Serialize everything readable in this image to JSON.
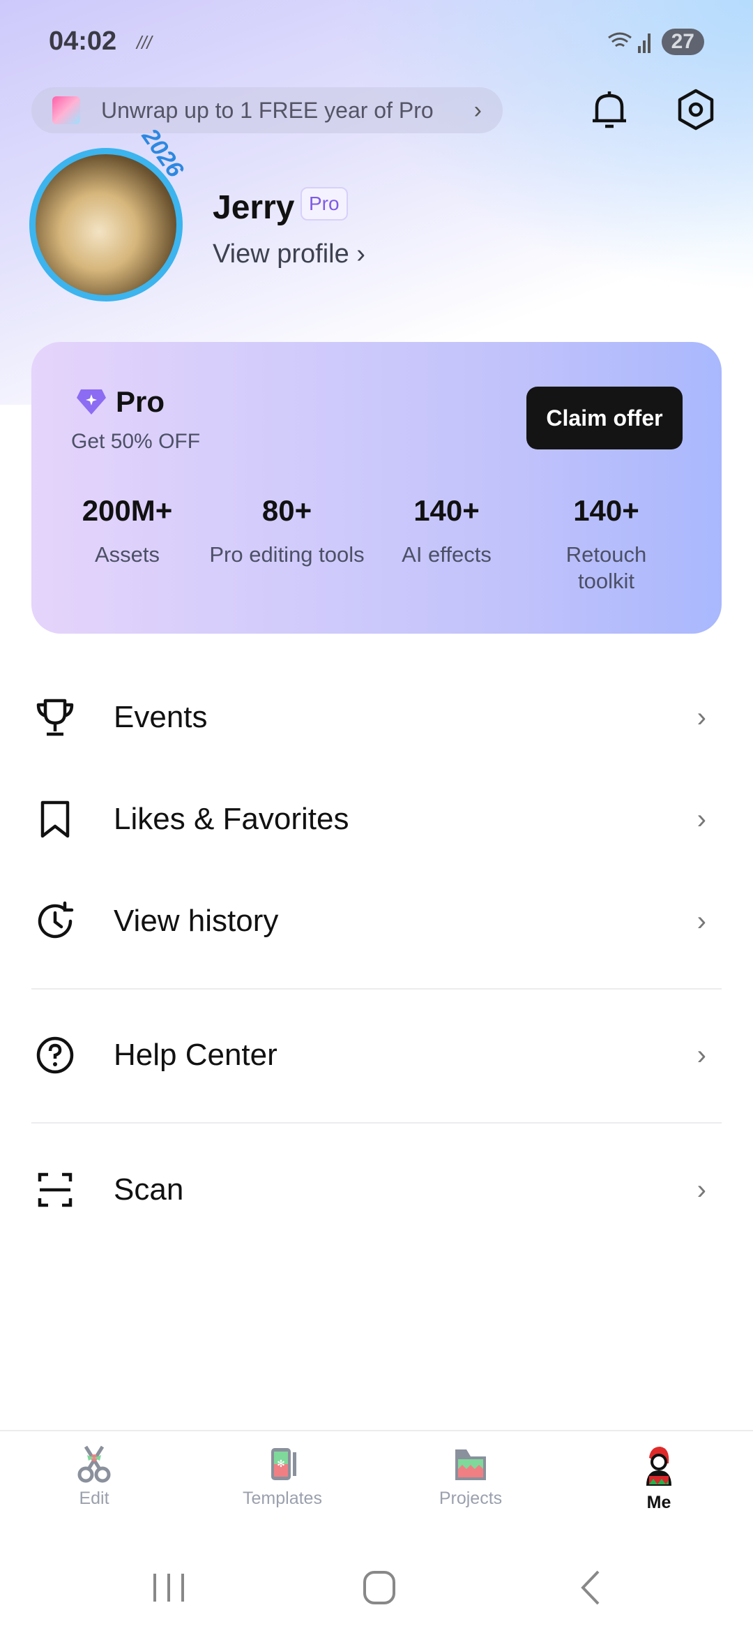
{
  "status_bar": {
    "time": "04:02",
    "misc": "///",
    "battery": "27"
  },
  "promo": {
    "text": "Unwrap up to 1 FREE year of Pro",
    "icon": "gift-icon"
  },
  "header": {
    "bell_icon": "bell-icon",
    "settings_icon": "settings-icon"
  },
  "profile": {
    "name": "Jerry",
    "badge": "Pro",
    "view_profile": "View profile ›",
    "frame_text": "2026"
  },
  "pro_card": {
    "title": "Pro",
    "subtitle": "Get 50% OFF",
    "cta": "Claim offer",
    "accent": "#8b6cf2",
    "stats": [
      {
        "value": "200M+",
        "label": "Assets"
      },
      {
        "value": "80+",
        "label": "Pro editing tools"
      },
      {
        "value": "140+",
        "label": "AI effects"
      },
      {
        "value": "140+",
        "label": "Retouch toolkit"
      }
    ]
  },
  "menu": [
    {
      "label": "Events",
      "icon": "trophy-icon"
    },
    {
      "label": "Likes & Favorites",
      "icon": "bookmark-icon"
    },
    {
      "label": "View history",
      "icon": "history-icon"
    },
    {
      "label": "Help Center",
      "icon": "help-icon"
    },
    {
      "label": "Scan",
      "icon": "scan-icon"
    }
  ],
  "bottom_nav": [
    {
      "label": "Edit",
      "active": false
    },
    {
      "label": "Templates",
      "active": false
    },
    {
      "label": "Projects",
      "active": false
    },
    {
      "label": "Me",
      "active": true
    }
  ],
  "chevron": "›"
}
